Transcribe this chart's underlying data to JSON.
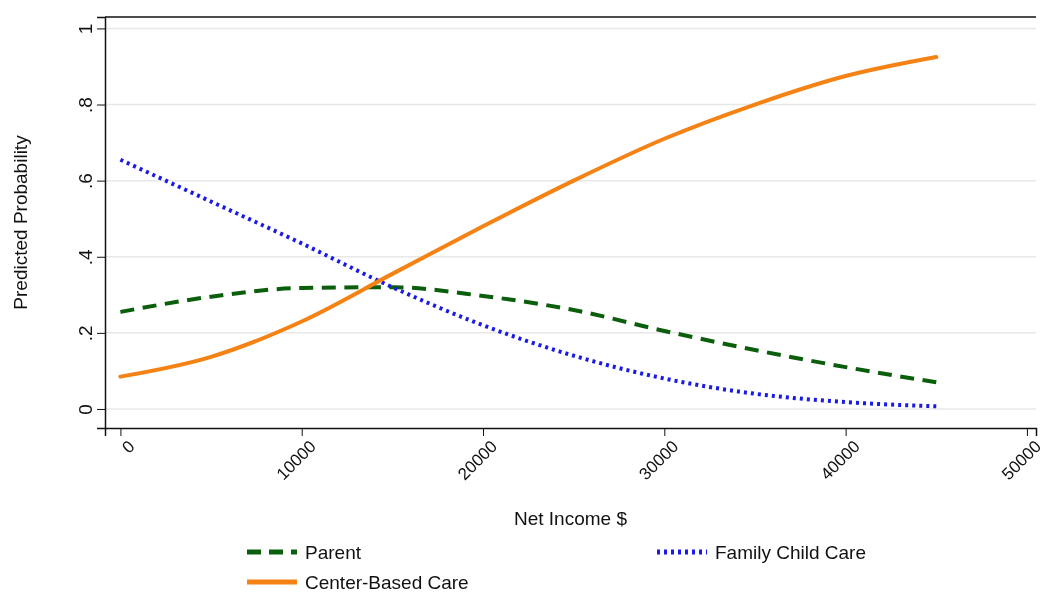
{
  "chart_data": {
    "type": "line",
    "xlabel": "Net Income $",
    "ylabel": "Predicted Probability",
    "x": [
      0,
      5000,
      10000,
      15000,
      20000,
      25000,
      30000,
      35000,
      40000,
      45000
    ],
    "series": [
      {
        "name": "Parent",
        "color": "#0b5e0b",
        "line_style": "dashed",
        "values": [
          0.255,
          0.295,
          0.318,
          0.32,
          0.297,
          0.26,
          0.205,
          0.155,
          0.11,
          0.07
        ]
      },
      {
        "name": "Family Child Care",
        "color": "#1a1ae6",
        "line_style": "dotted",
        "values": [
          0.655,
          0.545,
          0.435,
          0.32,
          0.22,
          0.14,
          0.08,
          0.04,
          0.018,
          0.007
        ]
      },
      {
        "name": "Center-Based Care",
        "color": "#f58214",
        "line_style": "solid",
        "values": [
          0.085,
          0.137,
          0.23,
          0.355,
          0.48,
          0.6,
          0.71,
          0.8,
          0.875,
          0.925
        ]
      }
    ],
    "xlim": [
      -850,
      50500
    ],
    "xticks": [
      0,
      10000,
      20000,
      30000,
      40000,
      50000
    ],
    "ylim": [
      -0.05,
      1.03
    ],
    "yticks": [
      {
        "value": 0,
        "label": "0"
      },
      {
        "value": 0.2,
        "label": ".2"
      },
      {
        "value": 0.4,
        "label": ".4"
      },
      {
        "value": 0.6,
        "label": ".6"
      },
      {
        "value": 0.8,
        "label": ".8"
      },
      {
        "value": 1,
        "label": "1"
      }
    ],
    "grid": "y",
    "legend": "bottom",
    "marker": "none"
  }
}
